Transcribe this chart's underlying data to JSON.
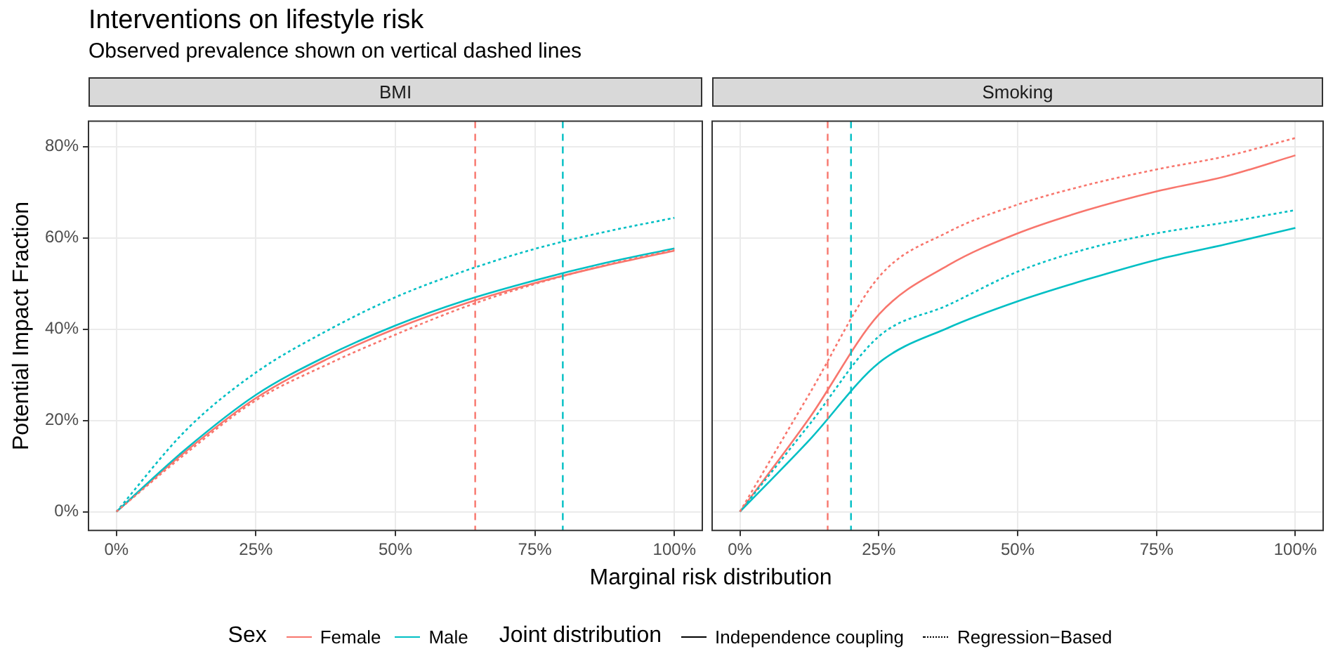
{
  "chart_data": [
    {
      "type": "other",
      "title": "Interventions on lifestyle risk",
      "subtitle": "Observed prevalence shown on vertical dashed lines",
      "legend_title": "Sex",
      "annotations": [
        "Joint distribution",
        "Independence coupling",
        "Regression−Based"
      ]
    },
    {
      "type": "line",
      "title": "BMI",
      "xlabel": "Marginal risk distribution",
      "ylabel": "Potential Impact Fraction",
      "x": [
        0,
        12.5,
        25,
        37.5,
        50,
        62.5,
        75,
        87.5,
        100
      ],
      "series": [
        {
          "name": "Female",
          "color": "#f8766d",
          "line_style": "solid",
          "values": [
            0,
            13.3,
            24.9,
            33.3,
            40.1,
            45.6,
            50.1,
            53.9,
            57.2
          ]
        },
        {
          "color": "#f8766d",
          "line_style": "dotted",
          "values": [
            0,
            12.8,
            24.4,
            32.1,
            38.8,
            44.9,
            49.9,
            54.0,
            57.4
          ]
        },
        {
          "name": "Male",
          "color": "#00bfc4",
          "line_style": "solid",
          "values": [
            0,
            13.8,
            25.6,
            34.0,
            40.8,
            46.3,
            50.7,
            54.5,
            57.7
          ]
        },
        {
          "color": "#00bfc4",
          "line_style": "dotted",
          "values": [
            0,
            17.9,
            30.5,
            39.5,
            47.0,
            52.8,
            57.6,
            61.3,
            64.4
          ]
        }
      ],
      "ref_lines": [
        {
          "axis": "x",
          "value": 64.3,
          "color": "#f8766d",
          "line_style": "dashed"
        },
        {
          "axis": "x",
          "value": 80,
          "color": "#00bfc4",
          "line_style": "dashed"
        }
      ],
      "xlim": [
        -5,
        105
      ],
      "xticks": [
        {
          "value": 0,
          "label": "0%"
        },
        {
          "value": 25,
          "label": "25%"
        },
        {
          "value": 50,
          "label": "50%"
        },
        {
          "value": 75,
          "label": "75%"
        },
        {
          "value": 100,
          "label": "100%"
        }
      ],
      "ylim": [
        -4.1,
        85.6
      ],
      "yticks": [
        {
          "value": 0,
          "label": "0%"
        },
        {
          "value": 20,
          "label": "20%"
        },
        {
          "value": 40,
          "label": "40%"
        },
        {
          "value": 60,
          "label": "60%"
        },
        {
          "value": 80,
          "label": "80%"
        }
      ],
      "grid": true,
      "legend": "bottom"
    },
    {
      "type": "line",
      "title": "Smoking",
      "x": [
        0,
        12.5,
        25,
        37.5,
        50,
        62.5,
        75,
        87.5,
        100
      ],
      "series": [
        {
          "name": "Female",
          "color": "#f8766d",
          "line_style": "solid",
          "values": [
            0,
            20.5,
            43.2,
            54.0,
            61.0,
            66.1,
            70.2,
            73.5,
            78.1
          ]
        },
        {
          "color": "#f8766d",
          "line_style": "dotted",
          "values": [
            0,
            25.8,
            51.4,
            61.3,
            67.3,
            71.6,
            75.0,
            77.9,
            81.9
          ]
        },
        {
          "name": "Male",
          "color": "#00bfc4",
          "line_style": "solid",
          "values": [
            0,
            15.7,
            32.6,
            40.3,
            46.1,
            50.9,
            55.2,
            58.6,
            62.2
          ]
        },
        {
          "color": "#00bfc4",
          "line_style": "dotted",
          "values": [
            0,
            19.1,
            38.4,
            45.3,
            52.6,
            57.6,
            61.0,
            63.4,
            66.1
          ]
        }
      ],
      "ref_lines": [
        {
          "axis": "x",
          "value": 15.8,
          "color": "#f8766d",
          "line_style": "dashed"
        },
        {
          "axis": "x",
          "value": 20,
          "color": "#00bfc4",
          "line_style": "dashed"
        }
      ],
      "xlim": [
        -5,
        105
      ],
      "xticks": [
        {
          "value": 0,
          "label": "0%"
        },
        {
          "value": 25,
          "label": "25%"
        },
        {
          "value": 50,
          "label": "50%"
        },
        {
          "value": 75,
          "label": "75%"
        },
        {
          "value": 100,
          "label": "100%"
        }
      ],
      "ylim": [
        -4.1,
        85.6
      ],
      "yticks": [
        0,
        20,
        40,
        60,
        80
      ],
      "grid": true,
      "legend": "bottom",
      "tick_labels": "x"
    }
  ]
}
